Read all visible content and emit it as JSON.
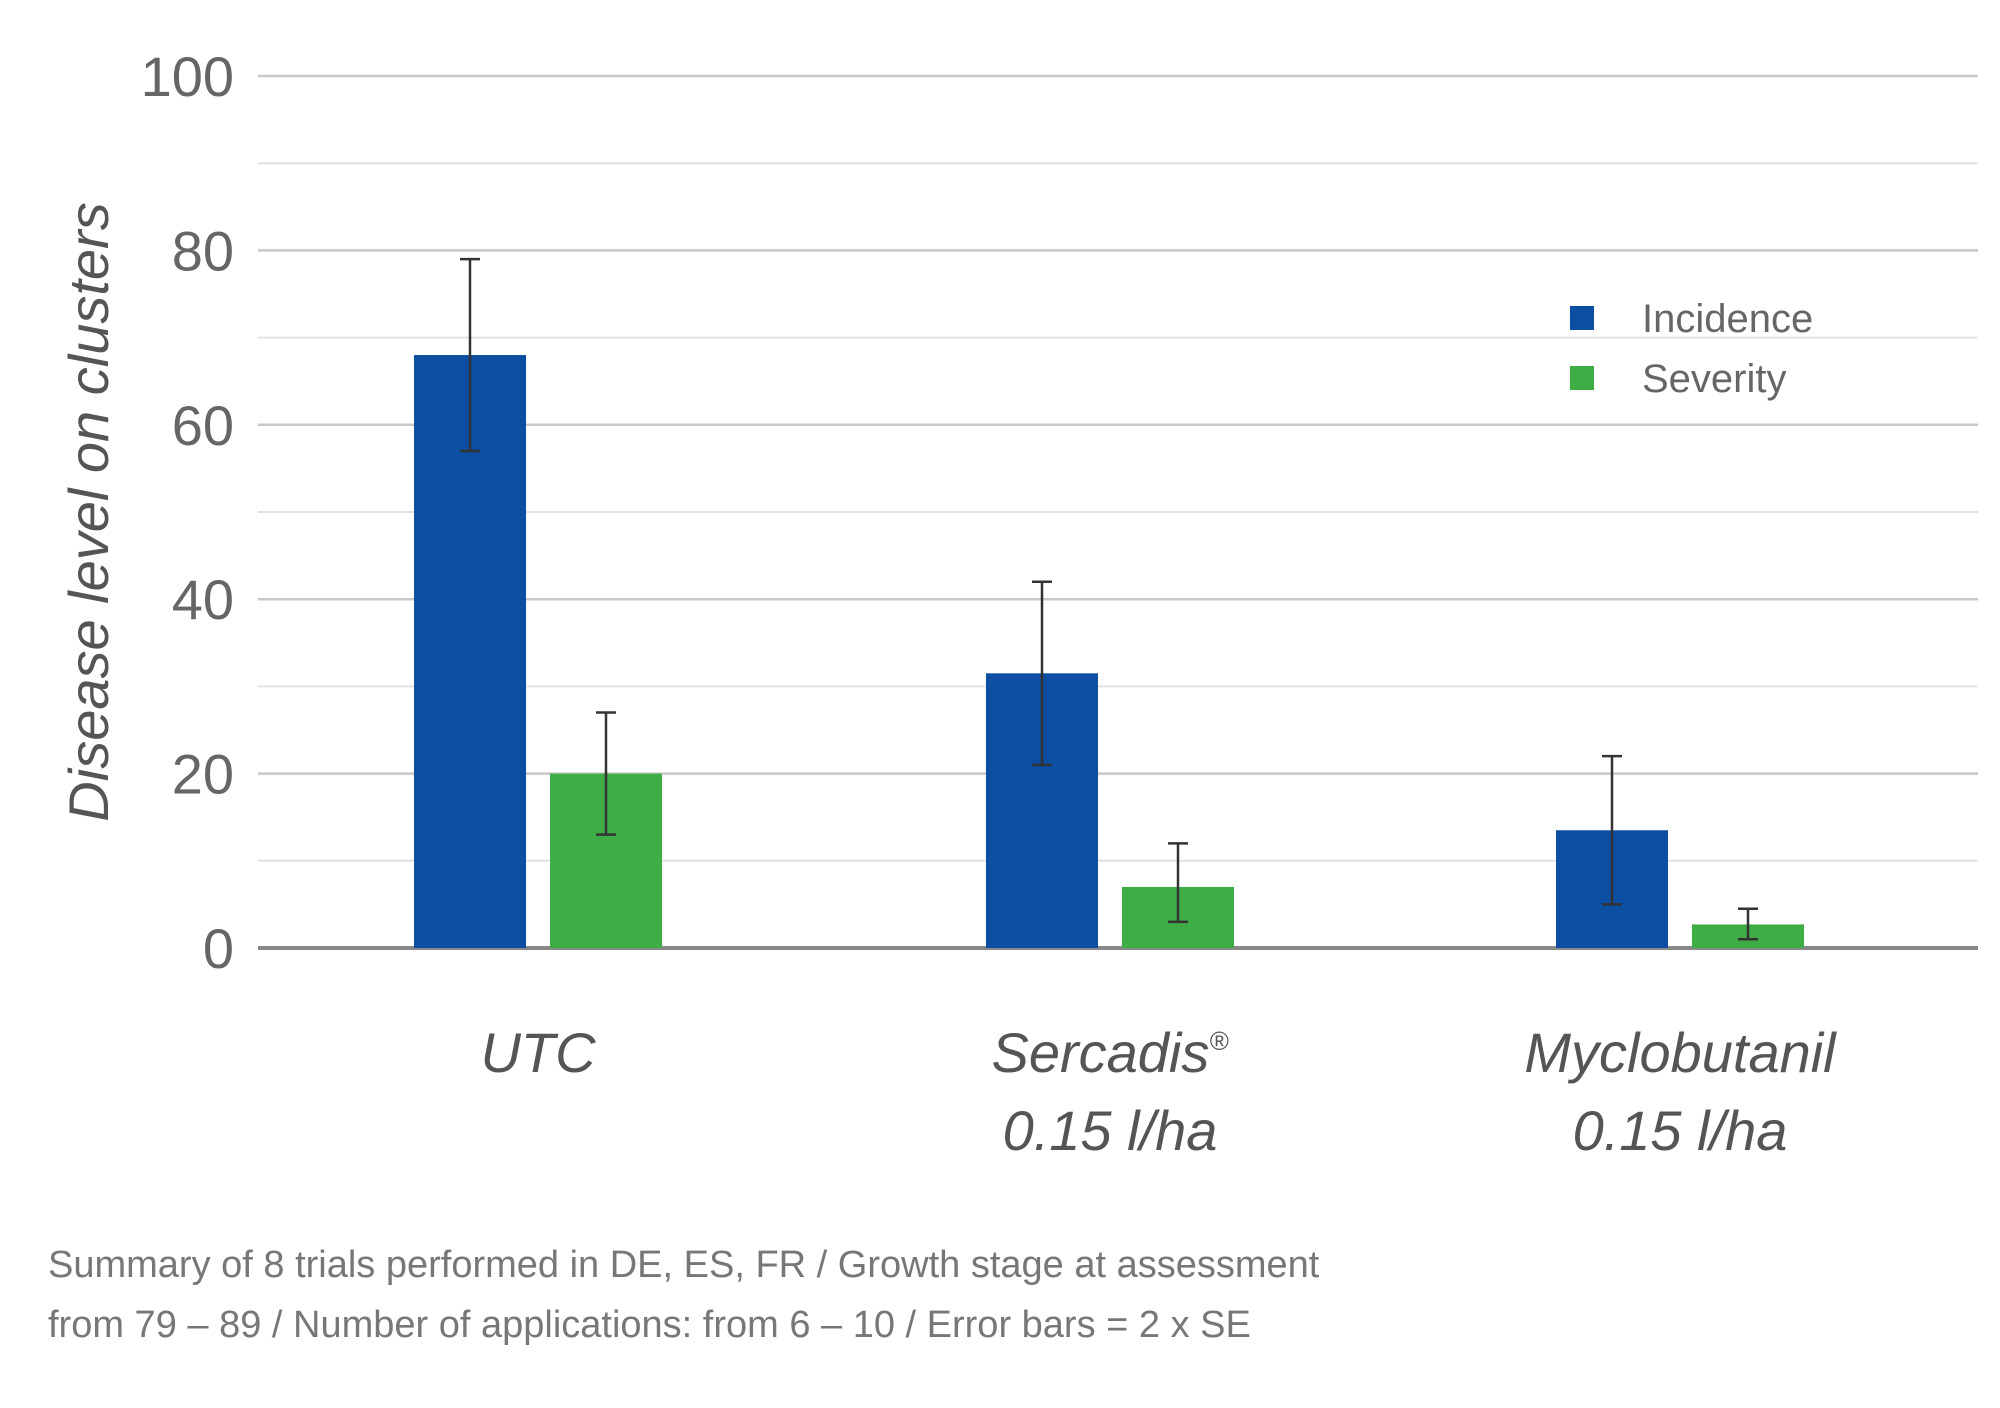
{
  "chart_data": {
    "type": "bar",
    "title": "",
    "xlabel": "",
    "ylabel": "Disease level on clusters",
    "ylim": [
      0,
      100
    ],
    "yticks": [
      0,
      20,
      40,
      60,
      80,
      100
    ],
    "minor_gridlines": [
      10,
      30,
      50,
      70,
      90
    ],
    "grid": true,
    "legend_position": "top-right",
    "categories": [
      {
        "lines": [
          "UTC"
        ]
      },
      {
        "lines": [
          "Sercadis",
          "0.15 l/ha"
        ],
        "superscript": "®"
      },
      {
        "lines": [
          "Myclobutanil",
          "0.15 l/ha"
        ]
      }
    ],
    "series": [
      {
        "name": "Incidence",
        "color": "#0b4ea2",
        "values": [
          68,
          31.5,
          13.5
        ],
        "error_low": [
          57,
          21,
          5
        ],
        "error_high": [
          79,
          42,
          22
        ]
      },
      {
        "name": "Severity",
        "color": "#3fad46",
        "values": [
          20,
          7,
          2.7
        ],
        "error_low": [
          13,
          3,
          1
        ],
        "error_high": [
          27,
          12,
          4.5
        ]
      }
    ],
    "axis_color": "#888888",
    "grid_color": "#c8c8c8",
    "error_bar_color": "#333333"
  },
  "footnote": {
    "line1": "Summary of 8 trials performed in DE, ES, FR / Growth stage at assessment",
    "line2": "from 79 – 89 / Number of applications: from 6 – 10 / Error bars = 2 x SE"
  }
}
